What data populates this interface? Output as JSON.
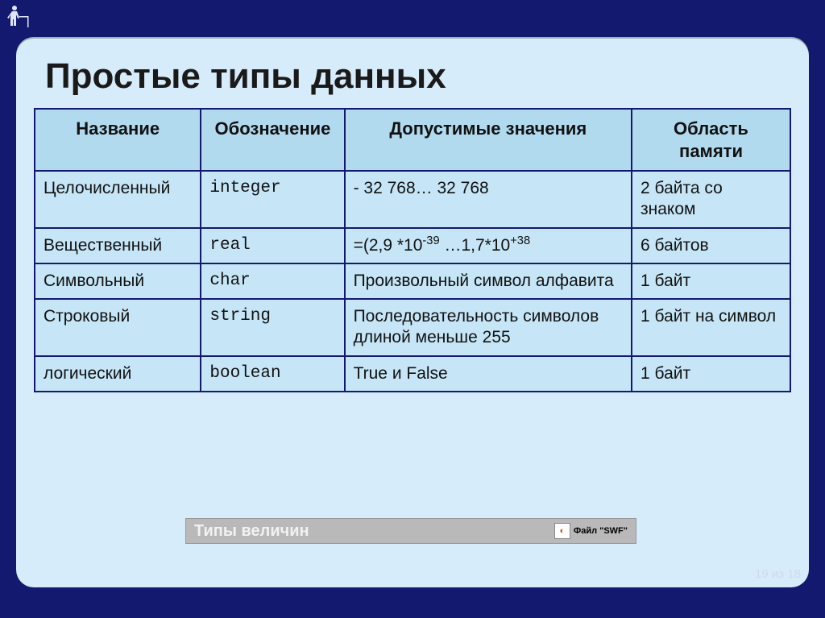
{
  "slide": {
    "title": "Простые типы данных",
    "background_color": "#13196e",
    "panel_color": "#d6ecfa",
    "table_bg": "#c6e6f7",
    "header_bg": "#b2daef",
    "border_color": "#13196e",
    "title_fontsize": 44
  },
  "table": {
    "columns": [
      "Название",
      "Обозначение",
      "Допустимые значения",
      "Область памяти"
    ],
    "col_widths_pct": [
      22,
      19,
      38,
      21
    ],
    "rows": [
      {
        "name": "Целочисленный",
        "notation": "integer",
        "range_html": "- 32 768… 32 768",
        "memory": "2 байта со знаком"
      },
      {
        "name": "Вещественный",
        "notation": "real",
        "range_html": "=(2,9 *10<sup>-39</sup> …1,7*10<sup>+38</sup>",
        "memory": "6 байтов"
      },
      {
        "name": "Символьный",
        "notation": "char",
        "range_html": "Произвольный символ алфавита",
        "memory": "1 байт"
      },
      {
        "name": "Строковый",
        "notation": "string",
        "range_html": "Последовательность символов длиной меньше 255",
        "memory": "1 байт на символ"
      },
      {
        "name": "логический",
        "notation": "boolean",
        "range_html": "True и False",
        "memory": "1 байт"
      }
    ]
  },
  "footer": {
    "label": "Типы величин",
    "file_label": "Файл \"SWF\"",
    "file_icon_glyph": "◐"
  },
  "pager": {
    "text": "19 из 18"
  }
}
